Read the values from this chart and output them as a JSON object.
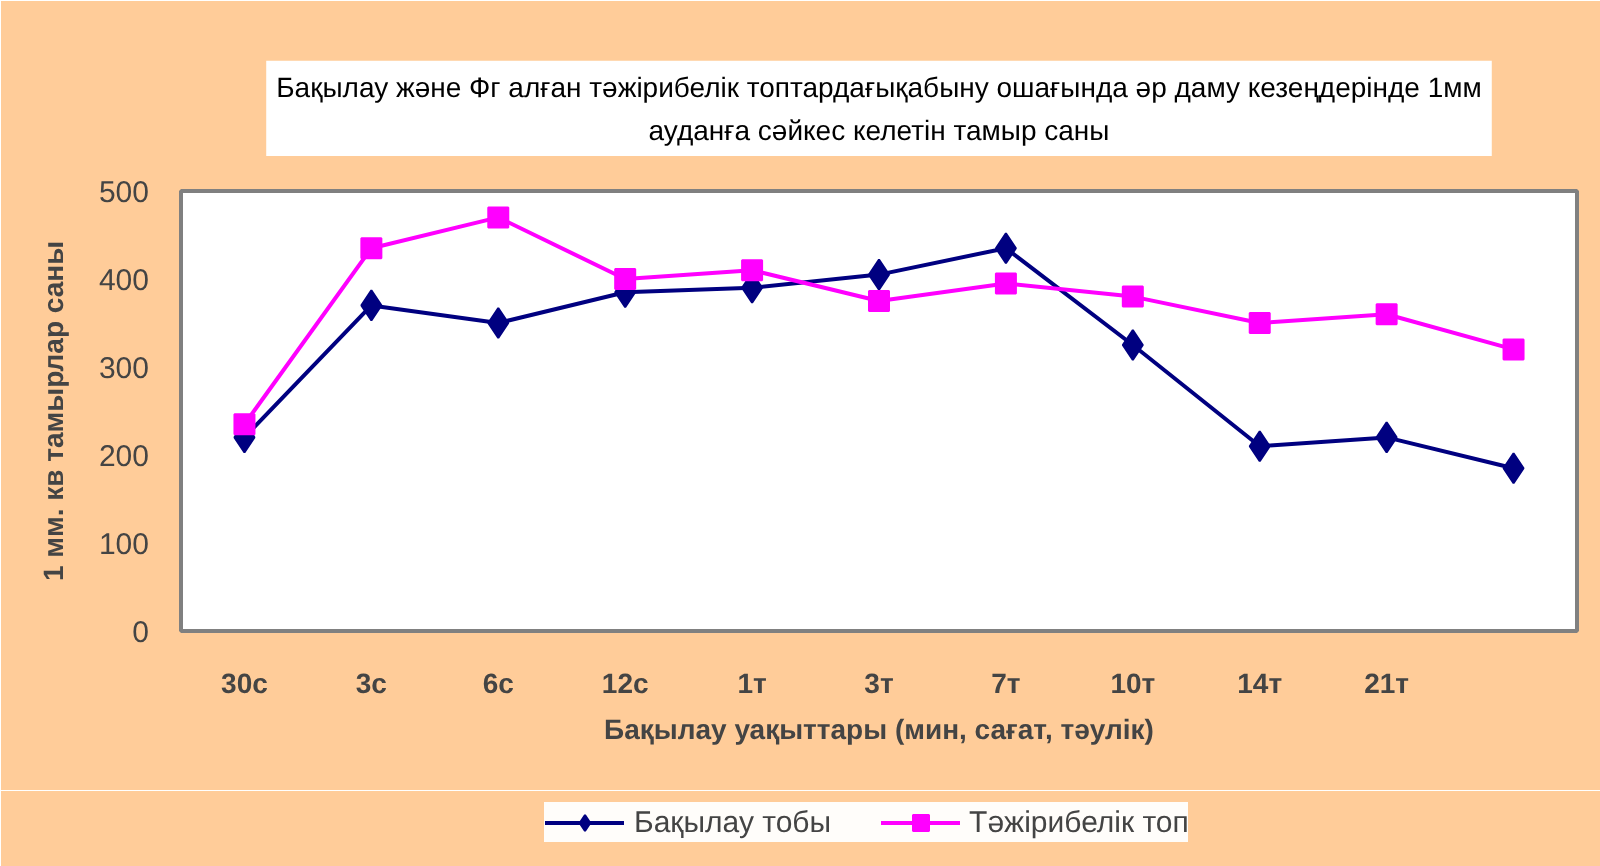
{
  "chart_data": {
    "type": "line",
    "title": "Бақылау және Фг алған тәжірибелік топтардағықабыну ошағында әр даму кезеңдерінде 1мм ауданға сәйкес келетін тамыр саны",
    "xlabel": "Бақылау уақыттары (мин, сағат, тәулік)",
    "ylabel": "1 мм. кв тамырлар саны",
    "categories": [
      "30с",
      "3с",
      "6с",
      "12с",
      "1т",
      "3т",
      "7т",
      "10т",
      "14т",
      "21т",
      null
    ],
    "series": [
      {
        "name": "Бақылау тобы",
        "color": "#000080",
        "marker": "diamond",
        "values": [
          220,
          370,
          350,
          385,
          390,
          405,
          435,
          325,
          210,
          220,
          185
        ]
      },
      {
        "name": "Тәжірибелік топ",
        "color": "#ff00ff",
        "marker": "square",
        "values": [
          235,
          435,
          470,
          400,
          410,
          375,
          395,
          380,
          350,
          360,
          320
        ]
      }
    ],
    "ylim": [
      0,
      500
    ],
    "yticks": [
      0,
      100,
      200,
      300,
      400,
      500
    ],
    "legend": "bottom",
    "line_style": "solid"
  }
}
